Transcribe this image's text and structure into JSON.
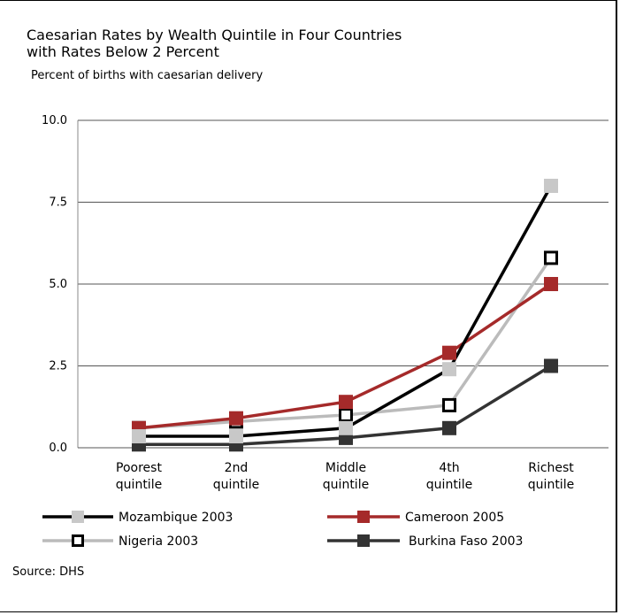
{
  "title": "Caesarian Rates by Wealth Quintile in Four Countries\nwith Rates Below 2 Percent",
  "subtitle": "Percent of births with caesarian delivery",
  "source": "Source: DHS",
  "chart_data": {
    "type": "line",
    "categories": [
      [
        "Poorest",
        "quintile"
      ],
      [
        "2nd",
        "quintile"
      ],
      [
        "Middle",
        "quintile"
      ],
      [
        "4th",
        "quintile"
      ],
      [
        "Richest",
        "quintile"
      ]
    ],
    "ylabel": "Percent of births with caesarian delivery",
    "ylim": [
      0,
      10
    ],
    "yticks": [
      "0.0",
      "2.5",
      "5.0",
      "7.5",
      "10.0"
    ],
    "grid": true,
    "series": [
      {
        "name": "Mozambique 2003",
        "color": "#000000",
        "marker": "light-gray-square",
        "values": [
          0.35,
          0.35,
          0.6,
          2.4,
          8.0
        ]
      },
      {
        "name": "Cameroon 2005",
        "color": "#a52a2a",
        "marker": "dark-red-square",
        "values": [
          0.6,
          0.9,
          1.4,
          2.9,
          5.0
        ]
      },
      {
        "name": "Nigeria 2003",
        "color": "#bbbbbb",
        "marker": "hollow-black-square",
        "values": [
          0.6,
          0.8,
          1.0,
          1.3,
          5.8
        ]
      },
      {
        "name": "Burkina Faso 2003",
        "color": "#333333",
        "marker": "dark-square",
        "values": [
          0.1,
          0.1,
          0.3,
          0.6,
          2.5
        ]
      }
    ]
  }
}
